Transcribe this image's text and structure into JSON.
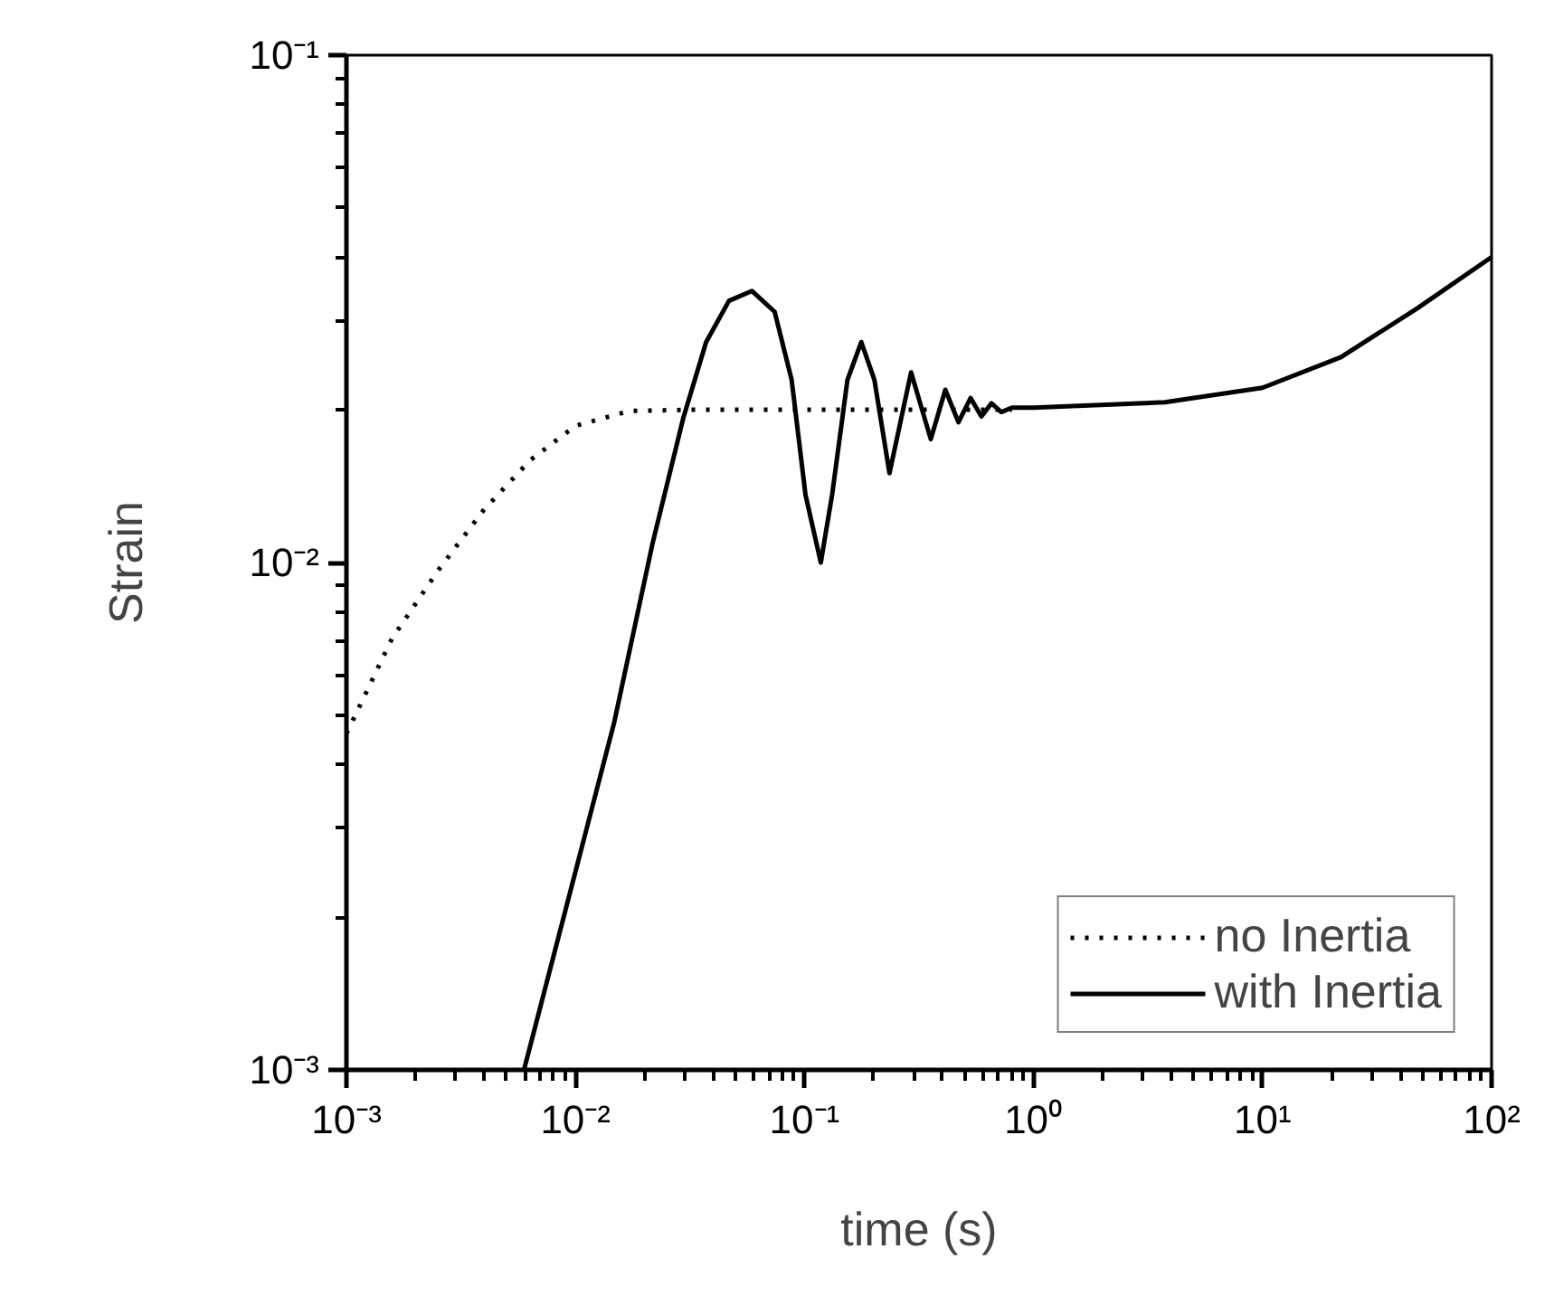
{
  "chart_data": {
    "type": "line",
    "xlabel": "time (s)",
    "ylabel": "Strain",
    "log": "xy",
    "grid": false,
    "legend": "bottom right",
    "xlim": [
      0.001,
      100
    ],
    "ylim": [
      0.001,
      0.1
    ],
    "xticks": [
      {
        "value": 0.001,
        "label": "10⁻³"
      },
      {
        "value": 0.01,
        "label": "10⁻²"
      },
      {
        "value": 0.1,
        "label": "10⁻¹"
      },
      {
        "value": 1,
        "label": "10⁰"
      },
      {
        "value": 10,
        "label": "10¹"
      },
      {
        "value": 100,
        "label": "10²"
      }
    ],
    "yticks": [
      {
        "value": 0.001,
        "label": "10⁻³"
      },
      {
        "value": 0.01,
        "label": "10⁻²"
      },
      {
        "value": 0.1,
        "label": "10⁻¹"
      }
    ],
    "series": [
      {
        "name": "no Inertia",
        "color": "#000000",
        "line_style": "dotted",
        "x": [
          0.001,
          0.00158,
          0.00251,
          0.00398,
          0.00633,
          0.01,
          0.0172,
          0.0318,
          0.1,
          0.3,
          0.805
        ],
        "values": [
          0.0046,
          0.00708,
          0.00964,
          0.0127,
          0.0159,
          0.0186,
          0.0199,
          0.02,
          0.02,
          0.02,
          0.02
        ]
      },
      {
        "name": "with Inertia",
        "color": "#000000",
        "line_style": "solid",
        "x": [
          0.00596,
          0.01476,
          0.0217,
          0.0295,
          0.0372,
          0.0468,
          0.0589,
          0.0741,
          0.0879,
          0.101,
          0.1178,
          0.132,
          0.154,
          0.177,
          0.202,
          0.235,
          0.292,
          0.356,
          0.412,
          0.47,
          0.531,
          0.592,
          0.655,
          0.723,
          0.805,
          1,
          3.75,
          10,
          22,
          47.4,
          100
        ],
        "values": [
          0.001,
          0.00484,
          0.0109,
          0.0192,
          0.0272,
          0.0328,
          0.0343,
          0.0312,
          0.0229,
          0.0136,
          0.01,
          0.0136,
          0.0229,
          0.0272,
          0.0229,
          0.015,
          0.0237,
          0.0175,
          0.0219,
          0.0189,
          0.0211,
          0.0194,
          0.0206,
          0.0198,
          0.0202,
          0.0202,
          0.0207,
          0.0221,
          0.0254,
          0.0317,
          0.04
        ]
      }
    ]
  }
}
